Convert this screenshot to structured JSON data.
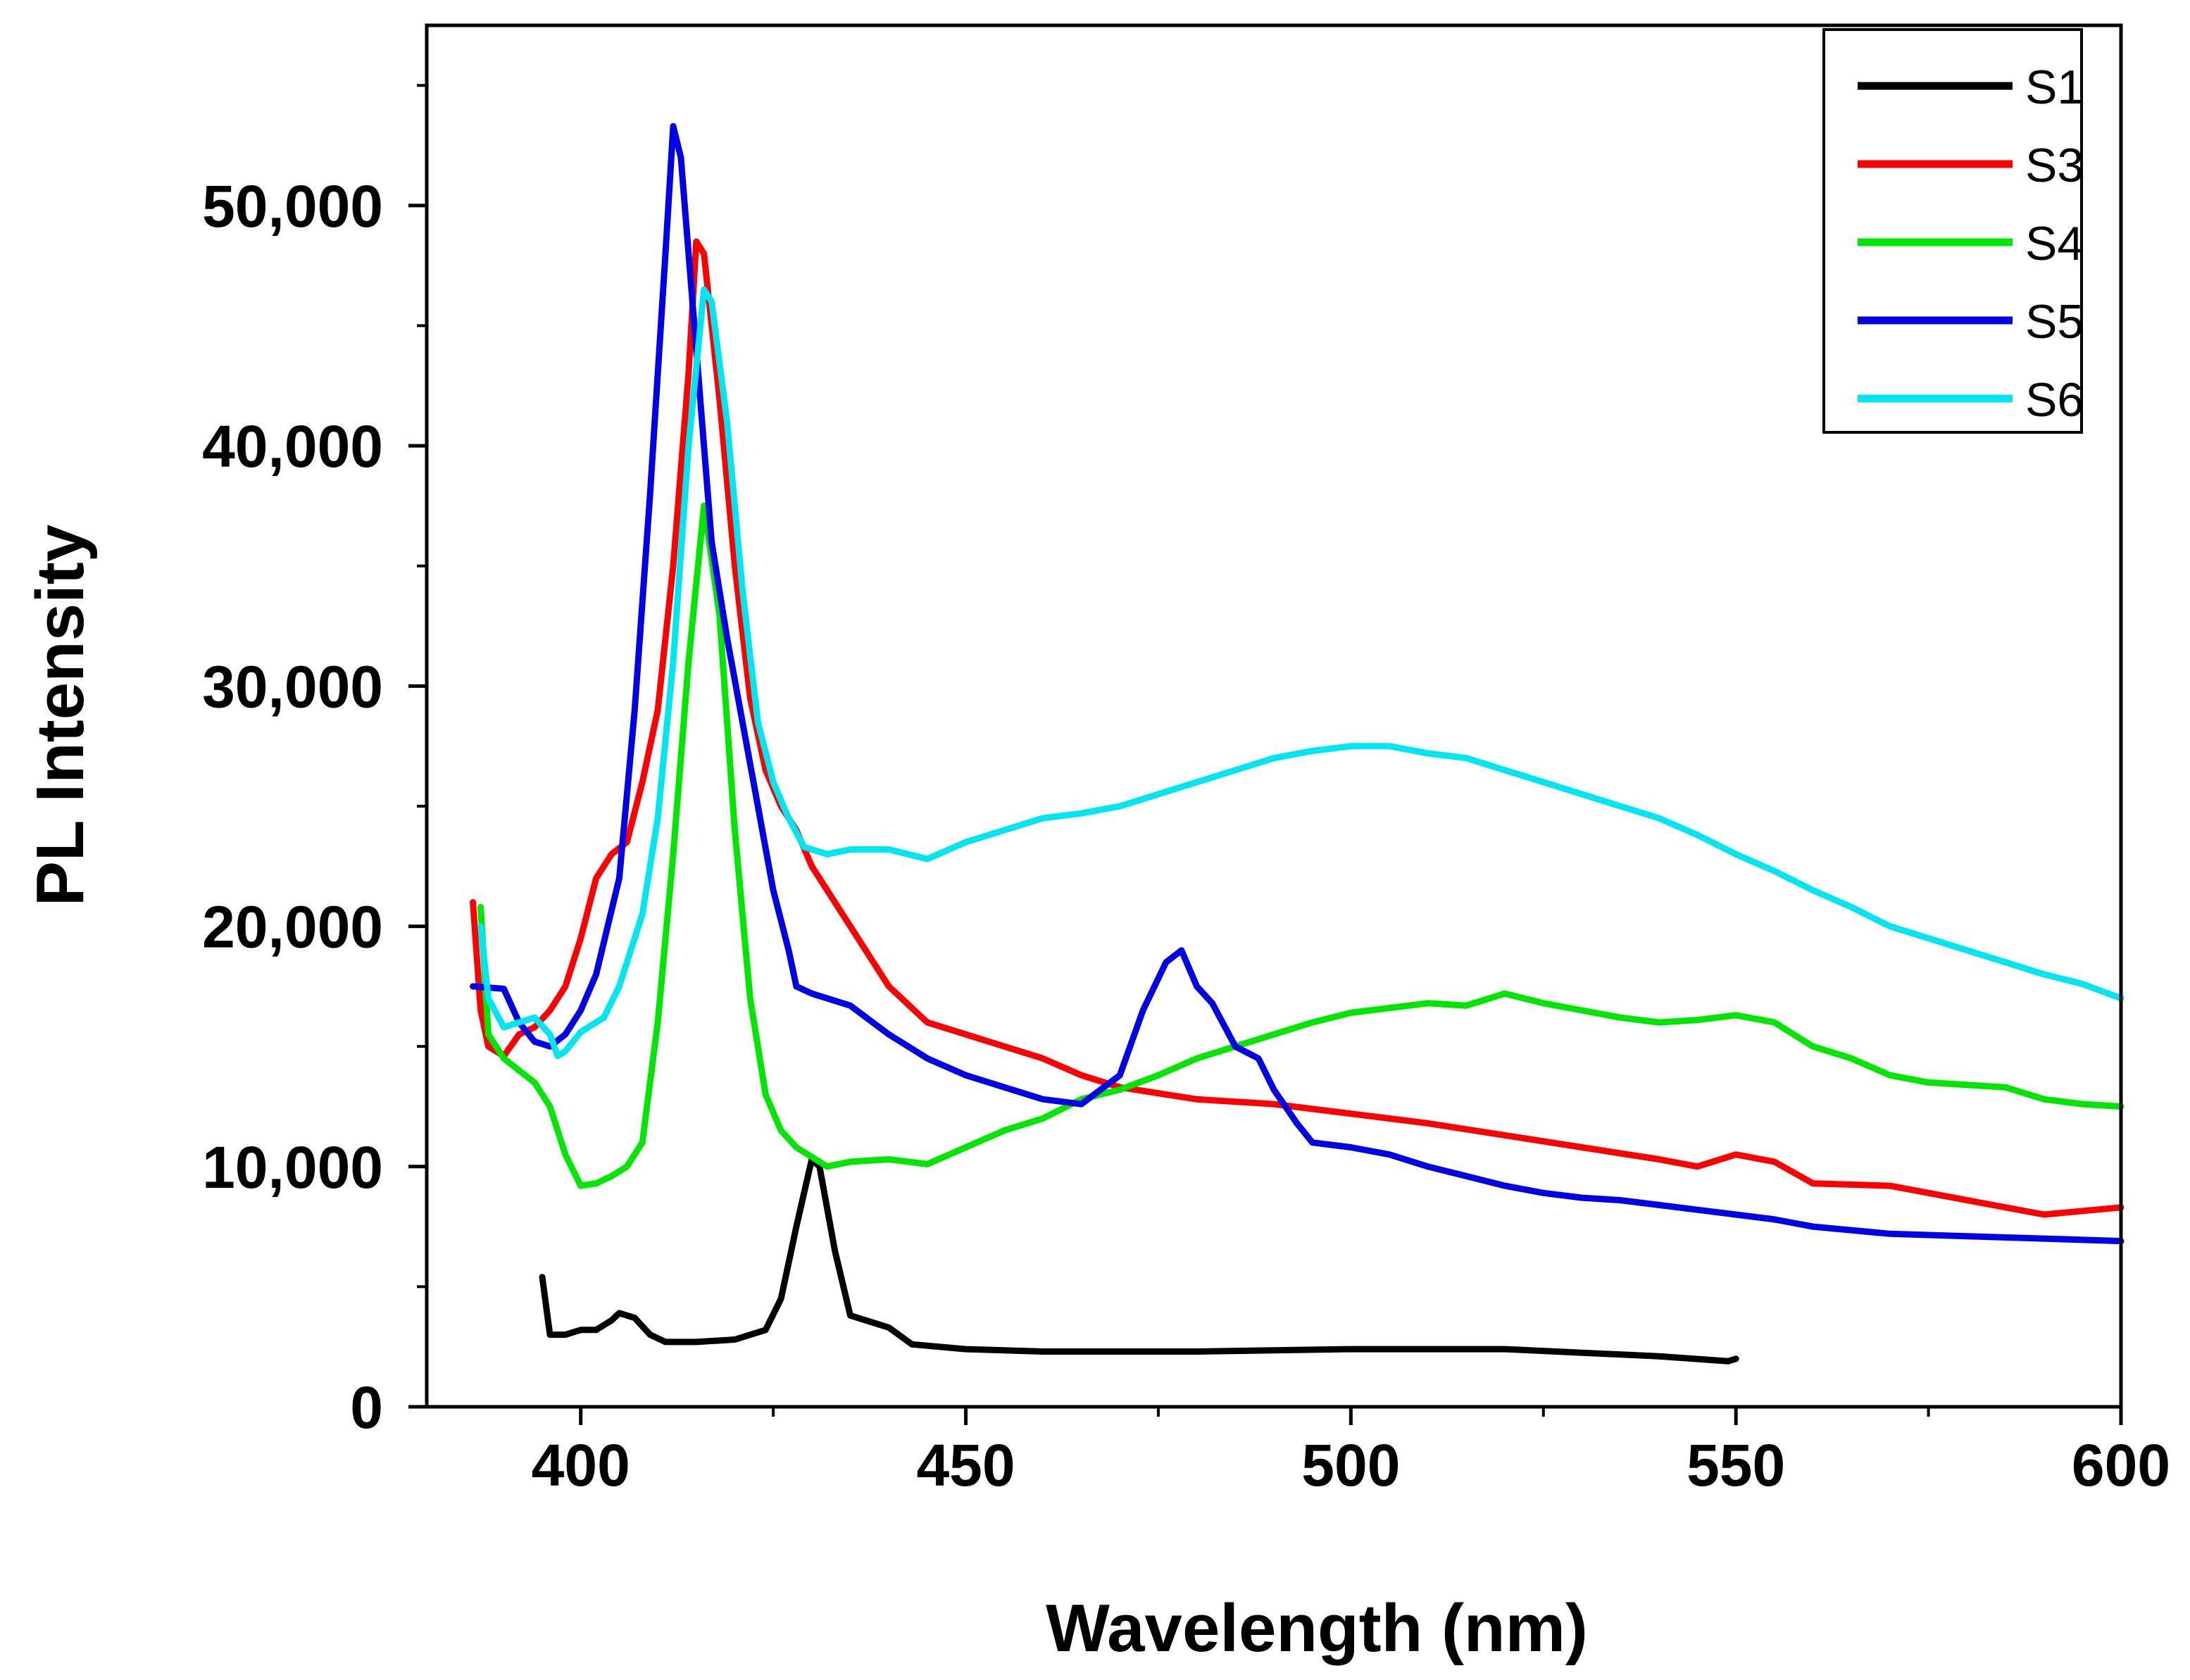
{
  "chart_data": {
    "type": "line",
    "title": "",
    "xlabel": "Wavelength (nm)",
    "ylabel": "PL Intensity",
    "xlim": [
      380,
      600
    ],
    "ylim": [
      0,
      57500
    ],
    "x_ticks": [
      400,
      450,
      500,
      550,
      600
    ],
    "x_tick_labels": [
      "400",
      "450",
      "500",
      "550",
      "600"
    ],
    "y_ticks": [
      0,
      10000,
      20000,
      30000,
      40000,
      50000
    ],
    "y_tick_labels": [
      "0",
      "10,000",
      "20,000",
      "30,000",
      "40,000",
      "50,000"
    ],
    "grid": false,
    "legend_position": "top-right",
    "series": [
      {
        "name": "S1",
        "color": "#000000",
        "points": [
          [
            395,
            5400
          ],
          [
            396,
            3000
          ],
          [
            398,
            3000
          ],
          [
            400,
            3200
          ],
          [
            402,
            3200
          ],
          [
            404,
            3600
          ],
          [
            405,
            3900
          ],
          [
            407,
            3700
          ],
          [
            409,
            3000
          ],
          [
            411,
            2700
          ],
          [
            415,
            2700
          ],
          [
            420,
            2800
          ],
          [
            424,
            3200
          ],
          [
            426,
            4500
          ],
          [
            428,
            7500
          ],
          [
            430,
            10300
          ],
          [
            431,
            10000
          ],
          [
            433,
            6500
          ],
          [
            435,
            3800
          ],
          [
            438,
            3500
          ],
          [
            440,
            3300
          ],
          [
            443,
            2600
          ],
          [
            450,
            2400
          ],
          [
            460,
            2300
          ],
          [
            480,
            2300
          ],
          [
            500,
            2400
          ],
          [
            520,
            2400
          ],
          [
            540,
            2100
          ],
          [
            549,
            1900
          ],
          [
            550,
            2000
          ]
        ]
      },
      {
        "name": "S3",
        "color": "#ff0000",
        "points": [
          [
            386,
            21000
          ],
          [
            387,
            16500
          ],
          [
            388,
            15000
          ],
          [
            390,
            14600
          ],
          [
            392,
            15500
          ],
          [
            394,
            15800
          ],
          [
            396,
            16500
          ],
          [
            398,
            17500
          ],
          [
            400,
            19500
          ],
          [
            402,
            22000
          ],
          [
            404,
            23000
          ],
          [
            406,
            23500
          ],
          [
            408,
            26000
          ],
          [
            410,
            29000
          ],
          [
            412,
            35000
          ],
          [
            414,
            43000
          ],
          [
            415,
            48500
          ],
          [
            416,
            48000
          ],
          [
            418,
            42000
          ],
          [
            420,
            35000
          ],
          [
            422,
            29500
          ],
          [
            424,
            26500
          ],
          [
            426,
            25000
          ],
          [
            428,
            24000
          ],
          [
            430,
            22500
          ],
          [
            435,
            20000
          ],
          [
            440,
            17500
          ],
          [
            445,
            16000
          ],
          [
            450,
            15500
          ],
          [
            455,
            15000
          ],
          [
            460,
            14500
          ],
          [
            465,
            13800
          ],
          [
            470,
            13300
          ],
          [
            480,
            12800
          ],
          [
            490,
            12600
          ],
          [
            500,
            12200
          ],
          [
            510,
            11800
          ],
          [
            520,
            11300
          ],
          [
            530,
            10800
          ],
          [
            540,
            10300
          ],
          [
            545,
            10000
          ],
          [
            550,
            10500
          ],
          [
            555,
            10200
          ],
          [
            560,
            9300
          ],
          [
            570,
            9200
          ],
          [
            580,
            8600
          ],
          [
            590,
            8000
          ],
          [
            600,
            8300
          ]
        ]
      },
      {
        "name": "S4",
        "color": "#00e600",
        "points": [
          [
            387,
            20800
          ],
          [
            388,
            15500
          ],
          [
            390,
            14500
          ],
          [
            392,
            14000
          ],
          [
            394,
            13500
          ],
          [
            396,
            12500
          ],
          [
            398,
            10500
          ],
          [
            400,
            9200
          ],
          [
            402,
            9300
          ],
          [
            404,
            9600
          ],
          [
            406,
            10000
          ],
          [
            408,
            11000
          ],
          [
            410,
            16000
          ],
          [
            412,
            23000
          ],
          [
            414,
            31000
          ],
          [
            416,
            37500
          ],
          [
            418,
            33000
          ],
          [
            420,
            24000
          ],
          [
            422,
            17000
          ],
          [
            424,
            13000
          ],
          [
            426,
            11500
          ],
          [
            428,
            10800
          ],
          [
            430,
            10400
          ],
          [
            432,
            10000
          ],
          [
            435,
            10200
          ],
          [
            440,
            10300
          ],
          [
            445,
            10100
          ],
          [
            450,
            10800
          ],
          [
            455,
            11500
          ],
          [
            460,
            12000
          ],
          [
            465,
            12800
          ],
          [
            470,
            13200
          ],
          [
            475,
            13800
          ],
          [
            480,
            14500
          ],
          [
            485,
            15000
          ],
          [
            490,
            15500
          ],
          [
            495,
            16000
          ],
          [
            500,
            16400
          ],
          [
            505,
            16600
          ],
          [
            510,
            16800
          ],
          [
            515,
            16700
          ],
          [
            520,
            17200
          ],
          [
            525,
            16800
          ],
          [
            530,
            16500
          ],
          [
            535,
            16200
          ],
          [
            540,
            16000
          ],
          [
            545,
            16100
          ],
          [
            550,
            16300
          ],
          [
            555,
            16000
          ],
          [
            560,
            15000
          ],
          [
            565,
            14500
          ],
          [
            570,
            13800
          ],
          [
            575,
            13500
          ],
          [
            580,
            13400
          ],
          [
            585,
            13300
          ],
          [
            590,
            12800
          ],
          [
            595,
            12600
          ],
          [
            600,
            12500
          ]
        ]
      },
      {
        "name": "S5",
        "color": "#0000e6",
        "points": [
          [
            386,
            17500
          ],
          [
            390,
            17400
          ],
          [
            392,
            16000
          ],
          [
            394,
            15200
          ],
          [
            396,
            15000
          ],
          [
            398,
            15500
          ],
          [
            400,
            16500
          ],
          [
            402,
            18000
          ],
          [
            405,
            22000
          ],
          [
            407,
            29000
          ],
          [
            409,
            38000
          ],
          [
            411,
            48000
          ],
          [
            412,
            53300
          ],
          [
            413,
            52000
          ],
          [
            415,
            44000
          ],
          [
            417,
            36000
          ],
          [
            419,
            32000
          ],
          [
            421,
            28500
          ],
          [
            423,
            25000
          ],
          [
            425,
            21500
          ],
          [
            427,
            19000
          ],
          [
            428,
            17500
          ],
          [
            430,
            17200
          ],
          [
            435,
            16700
          ],
          [
            440,
            15500
          ],
          [
            445,
            14500
          ],
          [
            450,
            13800
          ],
          [
            455,
            13300
          ],
          [
            460,
            12800
          ],
          [
            465,
            12600
          ],
          [
            470,
            13800
          ],
          [
            473,
            16500
          ],
          [
            476,
            18500
          ],
          [
            478,
            19000
          ],
          [
            480,
            17500
          ],
          [
            482,
            16800
          ],
          [
            485,
            15000
          ],
          [
            488,
            14500
          ],
          [
            490,
            13200
          ],
          [
            493,
            11800
          ],
          [
            495,
            11000
          ],
          [
            500,
            10800
          ],
          [
            505,
            10500
          ],
          [
            510,
            10000
          ],
          [
            515,
            9600
          ],
          [
            520,
            9200
          ],
          [
            525,
            8900
          ],
          [
            530,
            8700
          ],
          [
            535,
            8600
          ],
          [
            540,
            8400
          ],
          [
            545,
            8200
          ],
          [
            550,
            8000
          ],
          [
            555,
            7800
          ],
          [
            560,
            7500
          ],
          [
            570,
            7200
          ],
          [
            580,
            7100
          ],
          [
            590,
            7000
          ],
          [
            600,
            6900
          ]
        ]
      },
      {
        "name": "S6",
        "color": "#00e6f0",
        "points": [
          [
            387,
            20000
          ],
          [
            388,
            17000
          ],
          [
            390,
            15800
          ],
          [
            392,
            16000
          ],
          [
            394,
            16200
          ],
          [
            396,
            15500
          ],
          [
            397,
            14600
          ],
          [
            398,
            14800
          ],
          [
            400,
            15600
          ],
          [
            403,
            16200
          ],
          [
            405,
            17500
          ],
          [
            408,
            20500
          ],
          [
            410,
            24500
          ],
          [
            412,
            31000
          ],
          [
            414,
            40000
          ],
          [
            416,
            46500
          ],
          [
            417,
            46000
          ],
          [
            419,
            41000
          ],
          [
            421,
            34000
          ],
          [
            423,
            28500
          ],
          [
            425,
            26000
          ],
          [
            427,
            24500
          ],
          [
            429,
            23300
          ],
          [
            432,
            23000
          ],
          [
            435,
            23200
          ],
          [
            440,
            23200
          ],
          [
            445,
            22800
          ],
          [
            450,
            23500
          ],
          [
            455,
            24000
          ],
          [
            460,
            24500
          ],
          [
            465,
            24700
          ],
          [
            470,
            25000
          ],
          [
            475,
            25500
          ],
          [
            480,
            26000
          ],
          [
            485,
            26500
          ],
          [
            490,
            27000
          ],
          [
            495,
            27300
          ],
          [
            500,
            27500
          ],
          [
            505,
            27500
          ],
          [
            510,
            27200
          ],
          [
            515,
            27000
          ],
          [
            520,
            26500
          ],
          [
            525,
            26000
          ],
          [
            530,
            25500
          ],
          [
            535,
            25000
          ],
          [
            540,
            24500
          ],
          [
            545,
            23800
          ],
          [
            550,
            23000
          ],
          [
            555,
            22300
          ],
          [
            560,
            21500
          ],
          [
            565,
            20800
          ],
          [
            570,
            20000
          ],
          [
            575,
            19500
          ],
          [
            580,
            19000
          ],
          [
            585,
            18500
          ],
          [
            590,
            18000
          ],
          [
            595,
            17600
          ],
          [
            600,
            17000
          ]
        ]
      }
    ]
  }
}
